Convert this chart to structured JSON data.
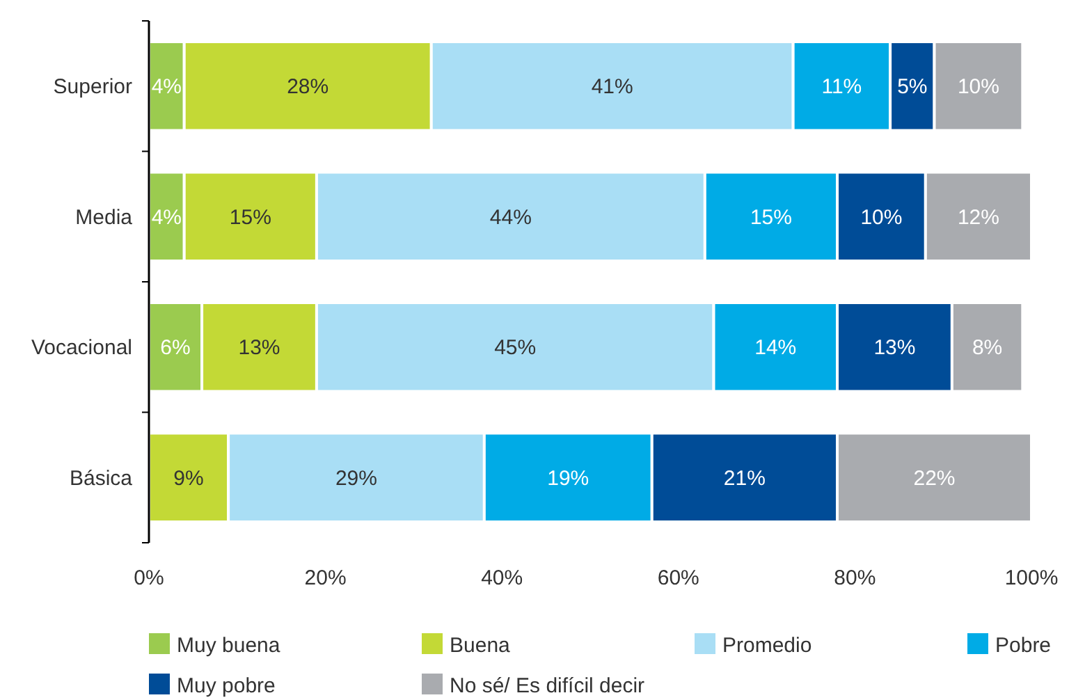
{
  "chart_data": {
    "type": "bar",
    "orientation": "horizontal",
    "stacked": true,
    "categories": [
      "Superior",
      "Media",
      "Vocacional",
      "Básica"
    ],
    "series": [
      {
        "name": "Muy buena",
        "color": "#9bcb4f",
        "values": [
          4,
          4,
          6,
          null
        ],
        "value_labels": [
          "4%",
          "4%",
          "6%",
          null
        ]
      },
      {
        "name": "Buena",
        "color": "#c3d936",
        "values": [
          28,
          15,
          13,
          9
        ],
        "value_labels": [
          "28%",
          "15%",
          "13%",
          "9%"
        ]
      },
      {
        "name": "Promedio",
        "color": "#a9def5",
        "values": [
          41,
          44,
          45,
          29
        ],
        "value_labels": [
          "41%",
          "44%",
          "45%",
          "29%"
        ]
      },
      {
        "name": "Pobre",
        "color": "#00abe6",
        "values": [
          11,
          15,
          14,
          19
        ],
        "value_labels": [
          "11%",
          "15%",
          "14%",
          "19%"
        ]
      },
      {
        "name": "Muy pobre",
        "color": "#004c97",
        "values": [
          5,
          10,
          13,
          21
        ],
        "value_labels": [
          "5%",
          "10%",
          "13%",
          "21%"
        ]
      },
      {
        "name": "No sé/ Es difícil decir",
        "color": "#a9abaf",
        "values": [
          10,
          12,
          8,
          22
        ],
        "value_labels": [
          "10%",
          "12%",
          "8%",
          "22%"
        ]
      }
    ],
    "xlim": [
      0,
      100
    ],
    "xticks": [
      {
        "value": 0,
        "label": "0%"
      },
      {
        "value": 20,
        "label": "20%"
      },
      {
        "value": 40,
        "label": "40%"
      },
      {
        "value": 60,
        "label": "60%"
      },
      {
        "value": 80,
        "label": "80%"
      },
      {
        "value": 100,
        "label": "100%"
      }
    ],
    "legend": "bottom",
    "grid": false
  }
}
